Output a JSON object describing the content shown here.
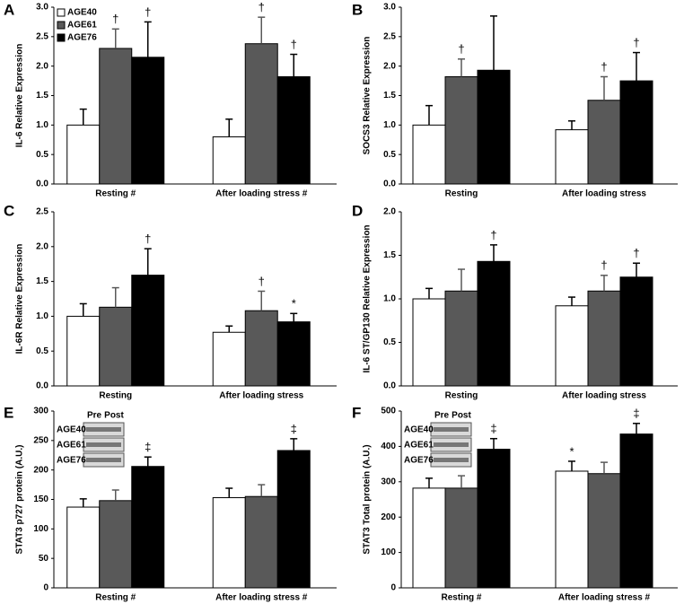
{
  "chart_data": [
    {
      "type": "bar",
      "panel": "A",
      "ylabel": "IL-6 Relative Expression",
      "categories": [
        "Resting  #",
        "After loading stress  #"
      ],
      "ylim": [
        0,
        3
      ],
      "yticks": [
        {
          "value": 0,
          "label": "0.0"
        },
        {
          "value": 0.5,
          "label": "0.5"
        },
        {
          "value": 1,
          "label": "1.0"
        },
        {
          "value": 1.5,
          "label": "1.5"
        },
        {
          "value": 2,
          "label": "2.0"
        },
        {
          "value": 2.5,
          "label": "2.5"
        },
        {
          "value": 3,
          "label": "3.0"
        }
      ],
      "legend": "upper left",
      "series": [
        {
          "name": "AGE40",
          "color": "#ffffff",
          "values": [
            1.0,
            0.8
          ],
          "errors": [
            0.27,
            0.3
          ],
          "annotations": [
            null,
            null
          ]
        },
        {
          "name": "AGE61",
          "color": "#595959",
          "values": [
            2.3,
            2.38
          ],
          "errors": [
            0.33,
            0.45
          ],
          "annotations": [
            "†",
            "†"
          ]
        },
        {
          "name": "AGE76",
          "color": "#000000",
          "values": [
            2.15,
            1.82
          ],
          "errors": [
            0.6,
            0.38
          ],
          "annotations": [
            "†",
            "†"
          ]
        }
      ]
    },
    {
      "type": "bar",
      "panel": "B",
      "ylabel": "SOCS3 Relative Expression",
      "categories": [
        "Resting",
        "After loading stress"
      ],
      "ylim": [
        0,
        3
      ],
      "yticks": [
        {
          "value": 0,
          "label": "0.0"
        },
        {
          "value": 0.5,
          "label": "0.5"
        },
        {
          "value": 1,
          "label": "1.0"
        },
        {
          "value": 1.5,
          "label": "1.5"
        },
        {
          "value": 2,
          "label": "2.0"
        },
        {
          "value": 2.5,
          "label": "2.5"
        },
        {
          "value": 3,
          "label": "3.0"
        }
      ],
      "series": [
        {
          "color": "#ffffff",
          "values": [
            1.0,
            0.92
          ],
          "errors": [
            0.33,
            0.15
          ],
          "annotations": [
            null,
            null
          ]
        },
        {
          "color": "#595959",
          "values": [
            1.82,
            1.42
          ],
          "errors": [
            0.3,
            0.4
          ],
          "annotations": [
            "†",
            "†"
          ]
        },
        {
          "color": "#000000",
          "values": [
            1.93,
            1.75
          ],
          "errors": [
            0.92,
            0.48
          ],
          "annotations": [
            null,
            "†"
          ]
        }
      ]
    },
    {
      "type": "bar",
      "panel": "C",
      "ylabel": "IL-6R Relative Expression",
      "categories": [
        "Resting",
        "After loading stress"
      ],
      "ylim": [
        0,
        2.5
      ],
      "yticks": [
        {
          "value": 0,
          "label": "0.0"
        },
        {
          "value": 0.5,
          "label": "0.5"
        },
        {
          "value": 1,
          "label": "1.0"
        },
        {
          "value": 1.5,
          "label": "1.5"
        },
        {
          "value": 2,
          "label": "2.0"
        },
        {
          "value": 2.5,
          "label": "2.5"
        }
      ],
      "series": [
        {
          "color": "#ffffff",
          "values": [
            1.0,
            0.77
          ],
          "errors": [
            0.18,
            0.09
          ],
          "annotations": [
            null,
            null
          ]
        },
        {
          "color": "#595959",
          "values": [
            1.13,
            1.08
          ],
          "errors": [
            0.28,
            0.28
          ],
          "annotations": [
            null,
            "†"
          ]
        },
        {
          "color": "#000000",
          "values": [
            1.59,
            0.92
          ],
          "errors": [
            0.38,
            0.12
          ],
          "annotations": [
            "†",
            "*"
          ]
        }
      ]
    },
    {
      "type": "bar",
      "panel": "D",
      "ylabel": "IL-6 ST/GP130 Relative Expression",
      "categories": [
        "Resting",
        "After loading stress"
      ],
      "ylim": [
        0,
        2
      ],
      "yticks": [
        {
          "value": 0,
          "label": "0.0"
        },
        {
          "value": 0.5,
          "label": "0.5"
        },
        {
          "value": 1,
          "label": "1.0"
        },
        {
          "value": 1.5,
          "label": "1.5"
        },
        {
          "value": 2,
          "label": "2.0"
        }
      ],
      "series": [
        {
          "color": "#ffffff",
          "values": [
            1.0,
            0.92
          ],
          "errors": [
            0.12,
            0.1
          ],
          "annotations": [
            null,
            null
          ]
        },
        {
          "color": "#595959",
          "values": [
            1.09,
            1.09
          ],
          "errors": [
            0.25,
            0.18
          ],
          "annotations": [
            null,
            "†"
          ]
        },
        {
          "color": "#000000",
          "values": [
            1.43,
            1.25
          ],
          "errors": [
            0.19,
            0.16
          ],
          "annotations": [
            "†",
            "†"
          ]
        }
      ]
    },
    {
      "type": "bar",
      "panel": "E",
      "ylabel": "STAT3 p727 protein (A.U.)",
      "categories": [
        "Resting  #",
        "After loading stress  #"
      ],
      "ylim": [
        0,
        300
      ],
      "yticks": [
        0,
        50,
        100,
        150,
        200,
        250,
        300
      ],
      "inset": {
        "columns": [
          "Pre",
          "Post"
        ],
        "rows": [
          "AGE40",
          "AGE61",
          "AGE76"
        ]
      },
      "series": [
        {
          "color": "#ffffff",
          "values": [
            137,
            153
          ],
          "errors": [
            14,
            16
          ],
          "annotations": [
            null,
            null
          ]
        },
        {
          "color": "#595959",
          "values": [
            148,
            155
          ],
          "errors": [
            18,
            20
          ],
          "annotations": [
            null,
            null
          ]
        },
        {
          "color": "#000000",
          "values": [
            206,
            233
          ],
          "errors": [
            16,
            20
          ],
          "annotations": [
            "‡",
            "‡"
          ]
        }
      ]
    },
    {
      "type": "bar",
      "panel": "F",
      "ylabel": "STAT3 Total protein (A.U.)",
      "categories": [
        "Resting #",
        "After loading stress #"
      ],
      "ylim": [
        0,
        500
      ],
      "yticks": [
        0,
        100,
        200,
        300,
        400,
        500
      ],
      "inset": {
        "columns": [
          "Pre",
          "Post"
        ],
        "rows": [
          "AGE40",
          "AGE61",
          "AGE76"
        ]
      },
      "series": [
        {
          "color": "#ffffff",
          "values": [
            282,
            330
          ],
          "errors": [
            28,
            28
          ],
          "annotations": [
            null,
            "*"
          ]
        },
        {
          "color": "#595959",
          "values": [
            282,
            323
          ],
          "errors": [
            35,
            32
          ],
          "annotations": [
            null,
            null
          ]
        },
        {
          "color": "#000000",
          "values": [
            392,
            435
          ],
          "errors": [
            30,
            30
          ],
          "annotations": [
            "‡",
            "‡"
          ]
        }
      ]
    }
  ]
}
